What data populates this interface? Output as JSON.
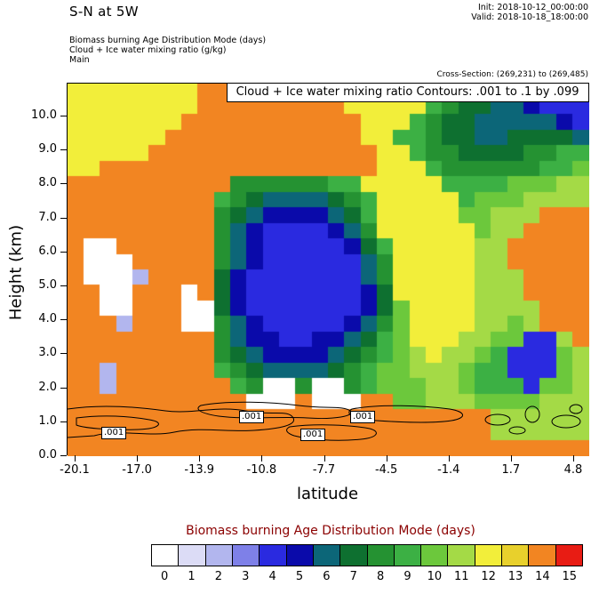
{
  "header": {
    "title": "S-N at 5W",
    "init": "Init: 2018-10-12_00:00:00",
    "valid": "Valid: 2018-10-18_18:00:00",
    "field1": "Biomass burning Age Distribution Mode   (days)",
    "field2": "Cloud + Ice water mixing ratio   (g/kg)",
    "field3": "Main",
    "cross_section": "Cross-Section: (269,231) to (269,485)"
  },
  "plot": {
    "overlay_title": "Cloud + Ice water mixing ratio Contours: .001 to .1 by .099",
    "contour_label": ".001"
  },
  "chart_data": {
    "type": "heatmap",
    "title": "Biomass burning Age Distribution Mode (days)",
    "xlabel": "latitude",
    "ylabel": "Height (km)",
    "x_ticks": [
      "-20.1",
      "-17.0",
      "-13.9",
      "-10.8",
      "-7.7",
      "-4.5",
      "-1.4",
      "1.7",
      "4.8"
    ],
    "y_ticks": [
      "0.0",
      "1.0",
      "2.0",
      "3.0",
      "4.0",
      "5.0",
      "6.0",
      "7.0",
      "8.0",
      "9.0",
      "10.0"
    ],
    "x_range": [
      -20.1,
      4.8
    ],
    "y_range": [
      0.0,
      10.9
    ],
    "contour_levels": [
      0.001,
      0.1
    ],
    "legend": {
      "title": "Biomass burning Age Distribution Mode  (days)",
      "title_color": "#8b0000",
      "categories": [
        "0",
        "1",
        "2",
        "3",
        "4",
        "5",
        "6",
        "7",
        "8",
        "9",
        "10",
        "11",
        "12",
        "13",
        "14",
        "15"
      ],
      "colors": [
        "#ffffff",
        "#dcdcf6",
        "#b2b6ee",
        "#7e80e8",
        "#2a2ae0",
        "#0a0aaa",
        "#0c6678",
        "#0e7030",
        "#259232",
        "#3cb044",
        "#6cc83c",
        "#a4da46",
        "#f2ee3a",
        "#e8d02c",
        "#f28522",
        "#e81c14"
      ]
    },
    "grid": {
      "description": "Age mode category (0-15 days) on 32 latitude columns (-20.1 to 4.8) x 24 height rows (top=10.9km to bottom=0km)",
      "ncols": 32,
      "nrows": 24,
      "values": [
        [
          12,
          12,
          12,
          12,
          12,
          12,
          12,
          12,
          14,
          14,
          14,
          14,
          14,
          14,
          14,
          14,
          14,
          12,
          12,
          12,
          12,
          12,
          12,
          9,
          9,
          8,
          7,
          7,
          6,
          4,
          4,
          4
        ],
        [
          12,
          12,
          12,
          12,
          12,
          12,
          12,
          12,
          14,
          14,
          14,
          14,
          14,
          14,
          14,
          14,
          14,
          12,
          12,
          12,
          12,
          12,
          9,
          8,
          7,
          7,
          6,
          6,
          5,
          4,
          4,
          4
        ],
        [
          12,
          12,
          12,
          12,
          12,
          12,
          12,
          14,
          14,
          14,
          14,
          14,
          14,
          14,
          14,
          14,
          14,
          14,
          12,
          12,
          12,
          9,
          8,
          7,
          7,
          6,
          6,
          6,
          6,
          6,
          5,
          4
        ],
        [
          12,
          12,
          12,
          12,
          12,
          12,
          14,
          14,
          14,
          14,
          14,
          14,
          14,
          14,
          14,
          14,
          14,
          14,
          12,
          12,
          9,
          9,
          8,
          7,
          7,
          6,
          6,
          7,
          7,
          7,
          7,
          6
        ],
        [
          12,
          12,
          12,
          12,
          12,
          14,
          14,
          14,
          14,
          14,
          14,
          14,
          14,
          14,
          14,
          14,
          14,
          14,
          14,
          12,
          12,
          9,
          8,
          8,
          7,
          7,
          7,
          7,
          8,
          8,
          9,
          9
        ],
        [
          12,
          12,
          14,
          14,
          14,
          14,
          14,
          14,
          14,
          14,
          14,
          14,
          14,
          14,
          14,
          14,
          14,
          14,
          14,
          12,
          12,
          12,
          9,
          8,
          8,
          8,
          8,
          8,
          8,
          9,
          9,
          10
        ],
        [
          14,
          14,
          14,
          14,
          14,
          14,
          14,
          14,
          14,
          14,
          8,
          8,
          8,
          8,
          8,
          8,
          9,
          9,
          12,
          12,
          12,
          12,
          12,
          9,
          9,
          9,
          9,
          10,
          10,
          10,
          11,
          11
        ],
        [
          14,
          14,
          14,
          14,
          14,
          14,
          14,
          14,
          14,
          9,
          8,
          7,
          6,
          6,
          6,
          6,
          7,
          8,
          9,
          12,
          12,
          12,
          12,
          12,
          9,
          10,
          10,
          10,
          11,
          11,
          11,
          11
        ],
        [
          14,
          14,
          14,
          14,
          14,
          14,
          14,
          14,
          14,
          8,
          7,
          6,
          5,
          5,
          5,
          5,
          6,
          7,
          9,
          12,
          12,
          12,
          12,
          12,
          10,
          10,
          11,
          11,
          11,
          14,
          14,
          14
        ],
        [
          14,
          14,
          14,
          14,
          14,
          14,
          14,
          14,
          14,
          8,
          6,
          5,
          4,
          4,
          4,
          4,
          5,
          6,
          8,
          12,
          12,
          12,
          12,
          12,
          12,
          10,
          11,
          11,
          14,
          14,
          14,
          14
        ],
        [
          14,
          0,
          0,
          14,
          14,
          14,
          14,
          14,
          14,
          8,
          6,
          5,
          4,
          4,
          4,
          4,
          4,
          5,
          7,
          9,
          12,
          12,
          12,
          12,
          12,
          11,
          11,
          14,
          14,
          14,
          14,
          14
        ],
        [
          14,
          0,
          0,
          0,
          14,
          14,
          14,
          14,
          14,
          8,
          6,
          5,
          4,
          4,
          4,
          4,
          4,
          4,
          6,
          8,
          12,
          12,
          12,
          12,
          12,
          11,
          11,
          14,
          14,
          14,
          14,
          14
        ],
        [
          14,
          0,
          0,
          0,
          2,
          14,
          14,
          14,
          14,
          7,
          5,
          4,
          4,
          4,
          4,
          4,
          4,
          4,
          6,
          8,
          12,
          12,
          12,
          12,
          12,
          11,
          11,
          11,
          14,
          14,
          14,
          14
        ],
        [
          14,
          14,
          0,
          0,
          14,
          14,
          14,
          0,
          14,
          7,
          5,
          4,
          4,
          4,
          4,
          4,
          4,
          4,
          5,
          7,
          12,
          12,
          12,
          12,
          12,
          11,
          11,
          11,
          14,
          14,
          14,
          14
        ],
        [
          14,
          14,
          0,
          0,
          14,
          14,
          14,
          0,
          0,
          7,
          5,
          4,
          4,
          4,
          4,
          4,
          4,
          4,
          5,
          7,
          10,
          12,
          12,
          12,
          12,
          11,
          11,
          11,
          11,
          14,
          14,
          14
        ],
        [
          14,
          14,
          14,
          2,
          14,
          14,
          14,
          0,
          0,
          8,
          6,
          5,
          4,
          4,
          4,
          4,
          4,
          5,
          6,
          8,
          10,
          12,
          12,
          12,
          12,
          11,
          11,
          10,
          11,
          14,
          14,
          14
        ],
        [
          14,
          14,
          14,
          14,
          14,
          14,
          14,
          14,
          14,
          8,
          6,
          5,
          5,
          4,
          4,
          5,
          5,
          6,
          7,
          9,
          10,
          12,
          12,
          12,
          11,
          11,
          10,
          10,
          4,
          4,
          11,
          14
        ],
        [
          14,
          14,
          14,
          14,
          14,
          14,
          14,
          14,
          14,
          8,
          7,
          6,
          5,
          5,
          5,
          5,
          6,
          7,
          8,
          9,
          10,
          11,
          12,
          11,
          11,
          10,
          9,
          4,
          4,
          4,
          10,
          11
        ],
        [
          14,
          14,
          2,
          14,
          14,
          14,
          14,
          14,
          14,
          9,
          8,
          7,
          6,
          6,
          6,
          6,
          7,
          8,
          9,
          10,
          10,
          11,
          11,
          11,
          10,
          9,
          9,
          4,
          4,
          4,
          10,
          11
        ],
        [
          14,
          14,
          2,
          14,
          14,
          14,
          14,
          14,
          14,
          14,
          9,
          8,
          0,
          0,
          8,
          0,
          0,
          8,
          9,
          10,
          10,
          10,
          11,
          11,
          10,
          9,
          9,
          9,
          4,
          10,
          10,
          11
        ],
        [
          14,
          14,
          14,
          14,
          14,
          14,
          14,
          14,
          14,
          14,
          14,
          0,
          0,
          0,
          14,
          0,
          0,
          0,
          14,
          14,
          10,
          10,
          11,
          11,
          11,
          10,
          10,
          10,
          10,
          11,
          11,
          11
        ],
        [
          14,
          14,
          14,
          14,
          14,
          14,
          14,
          14,
          14,
          14,
          14,
          14,
          14,
          14,
          14,
          14,
          14,
          14,
          14,
          14,
          14,
          14,
          14,
          14,
          14,
          14,
          11,
          11,
          11,
          11,
          11,
          11
        ],
        [
          14,
          14,
          14,
          14,
          14,
          14,
          14,
          14,
          14,
          14,
          14,
          14,
          14,
          14,
          14,
          14,
          14,
          14,
          14,
          14,
          14,
          14,
          14,
          14,
          14,
          14,
          11,
          11,
          11,
          11,
          11,
          11
        ],
        [
          14,
          14,
          14,
          14,
          14,
          14,
          14,
          14,
          14,
          14,
          14,
          14,
          14,
          14,
          14,
          14,
          14,
          14,
          14,
          14,
          14,
          14,
          14,
          14,
          14,
          14,
          14,
          14,
          14,
          14,
          14,
          14
        ]
      ]
    }
  }
}
